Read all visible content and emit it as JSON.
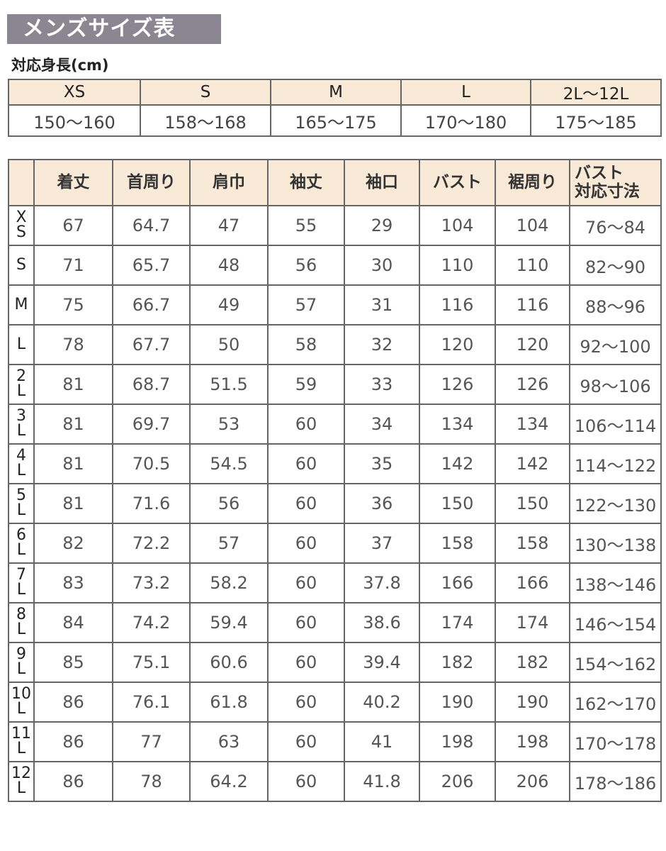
{
  "title": "メンズサイズ表",
  "height_section": {
    "label": "対応身長(cm)",
    "sizes": [
      "XS",
      "S",
      "M",
      "L",
      "2L〜12L"
    ],
    "heights": [
      "150〜160",
      "158〜168",
      "165〜175",
      "170〜180",
      "175〜185"
    ]
  },
  "size_table": {
    "headers": [
      "",
      "着丈",
      "首周り",
      "肩巾",
      "袖丈",
      "袖口",
      "バスト",
      "裾周り",
      "バスト 対応寸法"
    ],
    "rows": [
      {
        "size": [
          "X",
          "S"
        ],
        "values": [
          "67",
          "64.7",
          "47",
          "55",
          "29",
          "104",
          "104",
          "76〜84"
        ]
      },
      {
        "size": [
          "S"
        ],
        "values": [
          "71",
          "65.7",
          "48",
          "56",
          "30",
          "110",
          "110",
          "82〜90"
        ]
      },
      {
        "size": [
          "M"
        ],
        "values": [
          "75",
          "66.7",
          "49",
          "57",
          "31",
          "116",
          "116",
          "88〜96"
        ]
      },
      {
        "size": [
          "L"
        ],
        "values": [
          "78",
          "67.7",
          "50",
          "58",
          "32",
          "120",
          "120",
          "92〜100"
        ]
      },
      {
        "size": [
          "2",
          "L"
        ],
        "values": [
          "81",
          "68.7",
          "51.5",
          "59",
          "33",
          "126",
          "126",
          "98〜106"
        ]
      },
      {
        "size": [
          "3",
          "L"
        ],
        "values": [
          "81",
          "69.7",
          "53",
          "60",
          "34",
          "134",
          "134",
          "106〜114"
        ]
      },
      {
        "size": [
          "4",
          "L"
        ],
        "values": [
          "81",
          "70.5",
          "54.5",
          "60",
          "35",
          "142",
          "142",
          "114〜122"
        ]
      },
      {
        "size": [
          "5",
          "L"
        ],
        "values": [
          "81",
          "71.6",
          "56",
          "60",
          "36",
          "150",
          "150",
          "122〜130"
        ]
      },
      {
        "size": [
          "6",
          "L"
        ],
        "values": [
          "82",
          "72.2",
          "57",
          "60",
          "37",
          "158",
          "158",
          "130〜138"
        ]
      },
      {
        "size": [
          "7",
          "L"
        ],
        "values": [
          "83",
          "73.2",
          "58.2",
          "60",
          "37.8",
          "166",
          "166",
          "138〜146"
        ]
      },
      {
        "size": [
          "8",
          "L"
        ],
        "values": [
          "84",
          "74.2",
          "59.4",
          "60",
          "38.6",
          "174",
          "174",
          "146〜154"
        ]
      },
      {
        "size": [
          "9",
          "L"
        ],
        "values": [
          "85",
          "75.1",
          "60.6",
          "60",
          "39.4",
          "182",
          "182",
          "154〜162"
        ]
      },
      {
        "size": [
          "10",
          "L"
        ],
        "values": [
          "86",
          "76.1",
          "61.8",
          "60",
          "40.2",
          "190",
          "190",
          "162〜170"
        ]
      },
      {
        "size": [
          "11",
          "L"
        ],
        "values": [
          "86",
          "77",
          "63",
          "60",
          "41",
          "198",
          "198",
          "170〜178"
        ]
      },
      {
        "size": [
          "12",
          "L"
        ],
        "values": [
          "86",
          "78",
          "64.2",
          "60",
          "41.8",
          "206",
          "206",
          "178〜186"
        ]
      }
    ]
  },
  "colors": {
    "title_bg": "#8b8792",
    "header_bg": "#f9e9d7",
    "border": "#666666"
  }
}
